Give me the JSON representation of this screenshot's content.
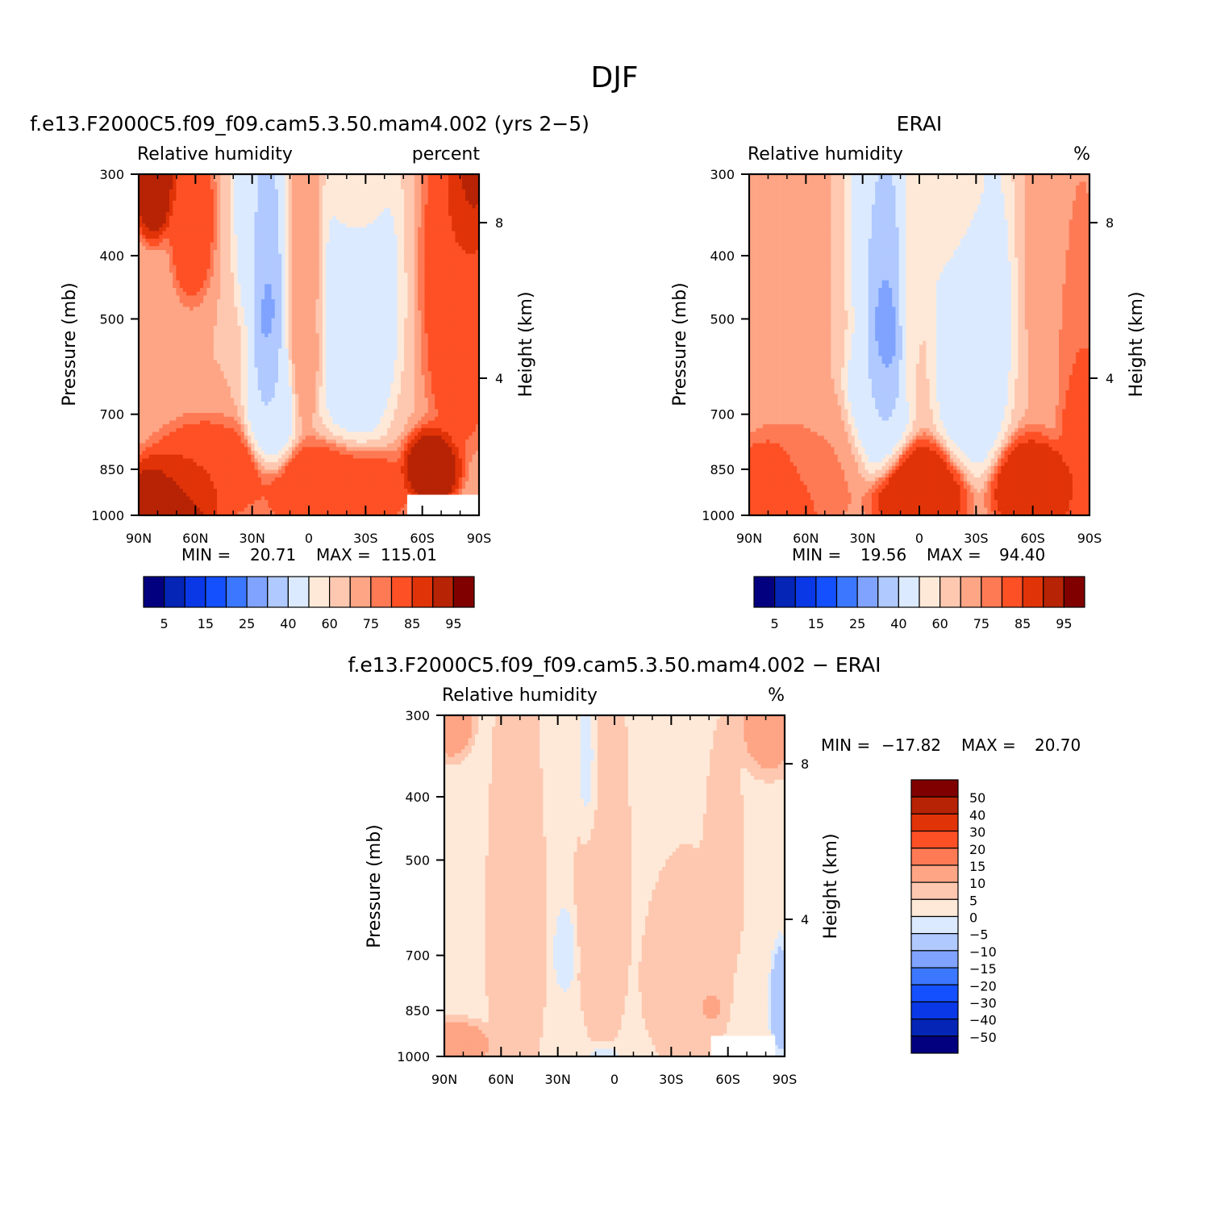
{
  "figure": {
    "title": "DJF"
  },
  "chart_data": [
    {
      "type": "heatmap",
      "title": "f.e13.F2000C5.f09_f09.cam5.3.50.mam4.002 (yrs 2−5)",
      "left_label": "Relative humidity",
      "right_label": "percent",
      "xlabel": "",
      "ylabel": "Pressure (mb)",
      "ylabel_right": "Height (km)",
      "x_ticks": [
        "90N",
        "60N",
        "30N",
        "0",
        "30S",
        "60S",
        "90S"
      ],
      "x_values": [
        90,
        60,
        30,
        0,
        -30,
        -60,
        -90
      ],
      "y_ticks": [
        "300",
        "400",
        "500",
        "700",
        "850",
        "1000"
      ],
      "y_values": [
        300,
        400,
        500,
        700,
        850,
        1000
      ],
      "right_ticks": [
        "8",
        "4"
      ],
      "right_values": [
        8,
        4
      ],
      "min_label": "MIN =",
      "min_value": "20.71",
      "max_label": "MAX =",
      "max_value": "115.01",
      "colorbar_labels": [
        "5",
        "15",
        "25",
        "40",
        "60",
        "75",
        "85",
        "95"
      ],
      "fields": [
        {
          "lat": 82,
          "p": 300,
          "v": 95,
          "sx": 6,
          "sp": 40
        },
        {
          "lat": 62,
          "p": 350,
          "v": 85,
          "sx": 6,
          "sp": 60
        },
        {
          "lat": 22,
          "p": 470,
          "v": 25,
          "sx": 4,
          "sp": 110
        },
        {
          "lat": 24,
          "p": 330,
          "v": 40,
          "sx": 8,
          "sp": 120
        },
        {
          "lat": 20,
          "p": 650,
          "v": 40,
          "sx": 7,
          "sp": 100
        },
        {
          "lat": -25,
          "p": 460,
          "v": 40,
          "sx": 12,
          "sp": 170
        },
        {
          "lat": -25,
          "p": 320,
          "v": 60,
          "sx": 10,
          "sp": 70
        },
        {
          "lat": 1,
          "p": 380,
          "v": 75,
          "sx": 6,
          "sp": 130
        },
        {
          "lat": 2,
          "p": 560,
          "v": 75,
          "sx": 5,
          "sp": 80
        },
        {
          "lat": 75,
          "p": 960,
          "v": 95,
          "sx": 14,
          "sp": 80
        },
        {
          "lat": 55,
          "p": 870,
          "v": 85,
          "sx": 16,
          "sp": 80
        },
        {
          "lat": -15,
          "p": 920,
          "v": 85,
          "sx": 20,
          "sp": 80
        },
        {
          "lat": -65,
          "p": 850,
          "v": 95,
          "sx": 8,
          "sp": 60
        },
        {
          "lat": -80,
          "p": 430,
          "v": 85,
          "sx": 10,
          "sp": 180
        },
        {
          "lat": -85,
          "p": 300,
          "v": 95,
          "sx": 6,
          "sp": 50
        }
      ],
      "no_data_region": {
        "lat_from": -52,
        "lat_to": -90,
        "p_from": 930,
        "p_to": 1000
      },
      "colorbar_levels": [
        5,
        10,
        15,
        20,
        25,
        30,
        40,
        50,
        60,
        70,
        75,
        80,
        85,
        90,
        95
      ],
      "colors": [
        "#030080",
        "#0525b7",
        "#0a38e6",
        "#1550ff",
        "#3b77ff",
        "#7fa3ff",
        "#b0c9ff",
        "#dceaff",
        "#fee9d8",
        "#fec8b0",
        "#fea585",
        "#fe7a55",
        "#fe5025",
        "#e13308",
        "#b72305",
        "#800000"
      ]
    },
    {
      "type": "heatmap",
      "title": "ERAI",
      "left_label": "Relative humidity",
      "right_label": "%",
      "xlabel": "",
      "ylabel": "Pressure (mb)",
      "ylabel_right": "Height (km)",
      "x_ticks": [
        "90N",
        "60N",
        "30N",
        "0",
        "30S",
        "60S",
        "90S"
      ],
      "x_values": [
        90,
        60,
        30,
        0,
        -30,
        -60,
        -90
      ],
      "y_ticks": [
        "300",
        "400",
        "500",
        "700",
        "850",
        "1000"
      ],
      "y_values": [
        300,
        400,
        500,
        700,
        850,
        1000
      ],
      "right_ticks": [
        "8",
        "4"
      ],
      "right_values": [
        8,
        4
      ],
      "min_label": "MIN =",
      "min_value": "19.56",
      "max_label": "MAX =",
      "max_value": "94.40",
      "colorbar_labels": [
        "5",
        "15",
        "25",
        "40",
        "60",
        "75",
        "85",
        "95"
      ],
      "fields": [
        {
          "lat": 18,
          "p": 500,
          "v": 19,
          "sx": 5,
          "sp": 110
        },
        {
          "lat": 18,
          "p": 350,
          "v": 40,
          "sx": 10,
          "sp": 150
        },
        {
          "lat": 22,
          "p": 680,
          "v": 40,
          "sx": 9,
          "sp": 110
        },
        {
          "lat": -28,
          "p": 500,
          "v": 40,
          "sx": 11,
          "sp": 190
        },
        {
          "lat": -20,
          "p": 320,
          "v": 60,
          "sx": 12,
          "sp": 70
        },
        {
          "lat": 2,
          "p": 420,
          "v": 60,
          "sx": 5,
          "sp": 140
        },
        {
          "lat": 78,
          "p": 380,
          "v": 75,
          "sx": 12,
          "sp": 180
        },
        {
          "lat": -82,
          "p": 380,
          "v": 75,
          "sx": 12,
          "sp": 180
        },
        {
          "lat": 72,
          "p": 920,
          "v": 85,
          "sx": 16,
          "sp": 90
        },
        {
          "lat": 52,
          "p": 850,
          "v": 75,
          "sx": 14,
          "sp": 100
        },
        {
          "lat": 0,
          "p": 920,
          "v": 90,
          "sx": 14,
          "sp": 80
        },
        {
          "lat": -60,
          "p": 910,
          "v": 90,
          "sx": 12,
          "sp": 80
        },
        {
          "lat": -86,
          "p": 750,
          "v": 85,
          "sx": 6,
          "sp": 200
        }
      ],
      "colorbar_levels": [
        5,
        10,
        15,
        20,
        25,
        30,
        40,
        50,
        60,
        70,
        75,
        80,
        85,
        90,
        95
      ],
      "colors": [
        "#030080",
        "#0525b7",
        "#0a38e6",
        "#1550ff",
        "#3b77ff",
        "#7fa3ff",
        "#b0c9ff",
        "#dceaff",
        "#fee9d8",
        "#fec8b0",
        "#fea585",
        "#fe7a55",
        "#fe5025",
        "#e13308",
        "#b72305",
        "#800000"
      ]
    },
    {
      "type": "heatmap",
      "title": "f.e13.F2000C5.f09_f09.cam5.3.50.mam4.002 − ERAI",
      "left_label": "Relative humidity",
      "right_label": "%",
      "xlabel": "",
      "ylabel": "Pressure (mb)",
      "ylabel_right": "Height (km)",
      "x_ticks": [
        "90N",
        "60N",
        "30N",
        "0",
        "30S",
        "60S",
        "90S"
      ],
      "x_values": [
        90,
        60,
        30,
        0,
        -30,
        -60,
        -90
      ],
      "y_ticks": [
        "300",
        "400",
        "500",
        "700",
        "850",
        "1000"
      ],
      "y_values": [
        300,
        400,
        500,
        700,
        850,
        1000
      ],
      "right_ticks": [
        "8",
        "4"
      ],
      "right_values": [
        8,
        4
      ],
      "min_label": "MIN =",
      "min_value": "−17.82",
      "max_label": "MAX =",
      "max_value": "20.70",
      "colorbar_labels": [
        "50",
        "40",
        "30",
        "20",
        "15",
        "10",
        "5",
        "0",
        "−5",
        "−10",
        "−15",
        "−20",
        "−30",
        "−40",
        "−50"
      ],
      "base": 3,
      "fields": [
        {
          "lat": 52,
          "p": 650,
          "v": 7,
          "sx": 8,
          "sp": 240
        },
        {
          "lat": 6,
          "p": 560,
          "v": 6,
          "sx": 8,
          "sp": 230
        },
        {
          "lat": -38,
          "p": 760,
          "v": 7,
          "sx": 12,
          "sp": 140
        },
        {
          "lat": -50,
          "p": 835,
          "v": 13,
          "sx": 4,
          "sp": 30
        },
        {
          "lat": -58,
          "p": 520,
          "v": 6,
          "sx": 6,
          "sp": 120
        },
        {
          "lat": 84,
          "p": 960,
          "v": 13,
          "sx": 10,
          "sp": 40
        },
        {
          "lat": 86,
          "p": 300,
          "v": 13,
          "sx": 6,
          "sp": 25
        },
        {
          "lat": -82,
          "p": 310,
          "v": 12,
          "sx": 8,
          "sp": 30
        },
        {
          "lat": 26,
          "p": 690,
          "v": -3,
          "sx": 3,
          "sp": 50
        },
        {
          "lat": 14,
          "p": 360,
          "v": -3,
          "sx": 3,
          "sp": 60
        },
        {
          "lat": -88,
          "p": 830,
          "v": -9,
          "sx": 3,
          "sp": 80
        },
        {
          "lat": 6,
          "p": 1000,
          "v": -1,
          "sx": 5,
          "sp": 25
        }
      ],
      "no_data_region": {
        "lat_from": -51,
        "lat_to": -85,
        "p_from": 930,
        "p_to": 1000
      },
      "colorbar_levels": [
        -50,
        -40,
        -30,
        -20,
        -15,
        -10,
        -5,
        0,
        5,
        10,
        15,
        20,
        30,
        40,
        50
      ],
      "colors": [
        "#030080",
        "#0525b7",
        "#0a38e6",
        "#1550ff",
        "#3b77ff",
        "#7fa3ff",
        "#b0c9ff",
        "#dceaff",
        "#fee9d8",
        "#fec8b0",
        "#fea585",
        "#fe7a55",
        "#fe5025",
        "#e13308",
        "#b72305",
        "#800000"
      ]
    }
  ]
}
